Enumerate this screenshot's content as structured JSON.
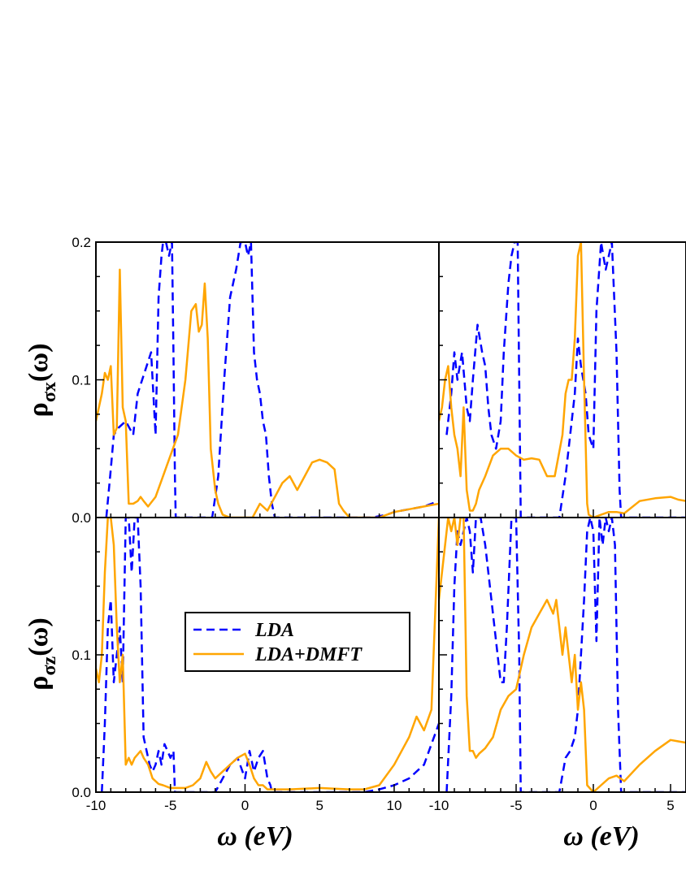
{
  "colors": {
    "lda": "#0000ff",
    "lda_dmft": "#ffa500",
    "axes": "#000000"
  },
  "axis_labels": {
    "x": "ω (eV)",
    "y_top": "ρσx(ω)",
    "y_bottom": "ρσz(ω)"
  },
  "y_label_parts": {
    "top": {
      "main": "ρ",
      "sub": "σx",
      "tail": "(ω)"
    },
    "bottom": {
      "main": "ρ",
      "sub": "σz",
      "tail": "(ω)"
    }
  },
  "legend": {
    "lda": "LDA",
    "lda_dmft": "LDA+DMFT"
  },
  "chart_data": [
    {
      "type": "line",
      "panel": "top-left",
      "xlim": [
        -10,
        13
      ],
      "ylim": [
        0,
        0.2
      ],
      "x_ticks": [],
      "y_ticks": [
        "0.0",
        "0.1",
        "0.2"
      ],
      "series": [
        {
          "name": "LDA",
          "style": "dashed",
          "x": [
            -9.3,
            -9.0,
            -8.8,
            -8.5,
            -8.0,
            -7.5,
            -7.2,
            -6.9,
            -6.6,
            -6.3,
            -6.0,
            -5.8,
            -5.6,
            -5.5,
            -5.3,
            -5.1,
            -4.9,
            -4.8,
            -4.7,
            -4.65,
            -2.2,
            -1.8,
            -1.4,
            -1.0,
            -0.6,
            -0.3,
            0.0,
            0.2,
            0.4,
            0.6,
            0.8,
            1.0,
            1.2,
            1.4,
            1.6,
            1.8,
            2.0,
            3,
            5,
            7,
            8.5,
            9.5,
            10,
            11,
            12,
            13
          ],
          "y": [
            0.0,
            0.035,
            0.06,
            0.065,
            0.07,
            0.06,
            0.09,
            0.1,
            0.11,
            0.12,
            0.06,
            0.16,
            0.19,
            0.2,
            0.2,
            0.19,
            0.2,
            0.12,
            0.03,
            0.0,
            0.0,
            0.03,
            0.1,
            0.16,
            0.18,
            0.2,
            0.2,
            0.19,
            0.2,
            0.12,
            0.1,
            0.09,
            0.07,
            0.06,
            0.03,
            0.01,
            0.0,
            0.0,
            0.0,
            0.0,
            0.0,
            0.002,
            0.004,
            0.006,
            0.008,
            0.012
          ]
        },
        {
          "name": "LDA+DMFT",
          "style": "solid",
          "x": [
            -10,
            -9.8,
            -9.6,
            -9.4,
            -9.2,
            -9.0,
            -8.8,
            -8.6,
            -8.4,
            -8.2,
            -8.0,
            -7.8,
            -7.5,
            -7.2,
            -7.0,
            -6.8,
            -6.5,
            -6.0,
            -5.5,
            -5.0,
            -4.5,
            -4.0,
            -3.6,
            -3.3,
            -3.1,
            -2.9,
            -2.7,
            -2.5,
            -2.3,
            -2.0,
            -1.8,
            -1.5,
            -1.0,
            0,
            0.5,
            1,
            1.5,
            2,
            2.5,
            3,
            3.5,
            4,
            4.5,
            5,
            5.5,
            6,
            6.3,
            6.6,
            7,
            8,
            9,
            10,
            11,
            12,
            13
          ],
          "y": [
            0.07,
            0.08,
            0.09,
            0.105,
            0.1,
            0.11,
            0.06,
            0.065,
            0.18,
            0.08,
            0.07,
            0.01,
            0.01,
            0.012,
            0.015,
            0.012,
            0.008,
            0.015,
            0.03,
            0.045,
            0.06,
            0.1,
            0.15,
            0.155,
            0.135,
            0.14,
            0.17,
            0.13,
            0.05,
            0.02,
            0.01,
            0.002,
            0.0,
            0.0,
            0.0,
            0.01,
            0.005,
            0.015,
            0.025,
            0.03,
            0.02,
            0.03,
            0.04,
            0.042,
            0.04,
            0.035,
            0.01,
            0.005,
            0.0,
            0.0,
            0.0,
            0.004,
            0.006,
            0.008,
            0.01
          ]
        }
      ]
    },
    {
      "type": "line",
      "panel": "bottom-left",
      "xlim": [
        -10,
        13
      ],
      "ylim": [
        0,
        0.2
      ],
      "x_ticks": [
        "-10",
        "-5",
        "0",
        "5",
        "10"
      ],
      "y_ticks": [
        "0.0",
        "0.1"
      ],
      "series": [
        {
          "name": "LDA",
          "style": "dashed",
          "x": [
            -9.6,
            -9.4,
            -9.2,
            -9.0,
            -8.8,
            -8.6,
            -8.4,
            -8.2,
            -8.0,
            -7.8,
            -7.6,
            -7.4,
            -7.2,
            -7.0,
            -6.8,
            -6.6,
            -6.4,
            -6.2,
            -6.0,
            -5.8,
            -5.6,
            -5.4,
            -5.2,
            -5.0,
            -4.8,
            -4.7,
            -3.5,
            -2.0,
            -1.5,
            -1.0,
            -0.5,
            0.0,
            0.3,
            0.6,
            0.9,
            1.2,
            1.5,
            1.7,
            1.8,
            3,
            5,
            7,
            8,
            9,
            10,
            11,
            12,
            13
          ],
          "y": [
            0.0,
            0.05,
            0.12,
            0.14,
            0.08,
            0.1,
            0.12,
            0.08,
            0.2,
            0.2,
            0.16,
            0.2,
            0.2,
            0.15,
            0.04,
            0.03,
            0.02,
            0.015,
            0.02,
            0.03,
            0.02,
            0.035,
            0.03,
            0.025,
            0.03,
            0.0,
            0.0,
            0.0,
            0.01,
            0.02,
            0.025,
            0.01,
            0.03,
            0.015,
            0.025,
            0.03,
            0.01,
            0.005,
            0.0,
            0.0,
            0.0,
            0.0,
            0.0,
            0.002,
            0.005,
            0.01,
            0.02,
            0.05
          ]
        },
        {
          "name": "LDA+DMFT",
          "style": "solid",
          "x": [
            -10,
            -9.8,
            -9.6,
            -9.4,
            -9.2,
            -9.0,
            -8.8,
            -8.6,
            -8.4,
            -8.2,
            -8.0,
            -7.8,
            -7.6,
            -7.4,
            -7.0,
            -6.8,
            -6.5,
            -6.2,
            -5.8,
            -5.5,
            -5.0,
            -4.5,
            -4.0,
            -3.5,
            -3.0,
            -2.6,
            -2.3,
            -2.0,
            -1.5,
            -1.0,
            -0.5,
            0.0,
            0.3,
            0.6,
            0.9,
            1.2,
            1.5,
            2,
            3,
            5,
            7,
            8,
            9,
            10,
            11,
            11.5,
            12,
            12.5,
            13
          ],
          "y": [
            0.09,
            0.08,
            0.1,
            0.16,
            0.2,
            0.2,
            0.18,
            0.12,
            0.08,
            0.1,
            0.02,
            0.025,
            0.02,
            0.025,
            0.03,
            0.025,
            0.02,
            0.01,
            0.006,
            0.005,
            0.003,
            0.003,
            0.003,
            0.005,
            0.01,
            0.022,
            0.015,
            0.01,
            0.015,
            0.02,
            0.025,
            0.028,
            0.02,
            0.01,
            0.005,
            0.005,
            0.002,
            0.002,
            0.002,
            0.003,
            0.002,
            0.002,
            0.005,
            0.02,
            0.04,
            0.055,
            0.045,
            0.06,
            0.2
          ]
        }
      ]
    },
    {
      "type": "line",
      "panel": "top-right",
      "xlim": [
        -10,
        6
      ],
      "ylim": [
        0,
        0.2
      ],
      "x_ticks": [],
      "y_ticks": [],
      "series": [
        {
          "name": "LDA",
          "style": "dashed",
          "x": [
            -9.5,
            -9.2,
            -9.0,
            -8.8,
            -8.5,
            -8.2,
            -8.0,
            -7.8,
            -7.5,
            -7.2,
            -7.0,
            -6.8,
            -6.6,
            -6.3,
            -6.0,
            -5.8,
            -5.5,
            -5.3,
            -5.1,
            -4.9,
            -4.8,
            -4.7,
            -2.2,
            -1.8,
            -1.5,
            -1.2,
            -1.0,
            -0.8,
            -0.5,
            -0.3,
            0.0,
            0.2,
            0.5,
            0.8,
            1.0,
            1.2,
            1.5,
            1.7,
            1.8,
            2.5,
            4,
            6
          ],
          "y": [
            0.06,
            0.09,
            0.12,
            0.1,
            0.12,
            0.08,
            0.07,
            0.1,
            0.14,
            0.12,
            0.11,
            0.08,
            0.06,
            0.05,
            0.07,
            0.12,
            0.17,
            0.19,
            0.2,
            0.2,
            0.1,
            0.0,
            0.0,
            0.03,
            0.06,
            0.09,
            0.13,
            0.11,
            0.09,
            0.06,
            0.05,
            0.15,
            0.2,
            0.18,
            0.19,
            0.2,
            0.12,
            0.02,
            0.0,
            0.0,
            0.0,
            0.0
          ]
        },
        {
          "name": "LDA+DMFT",
          "style": "solid",
          "x": [
            -10,
            -9.8,
            -9.6,
            -9.4,
            -9.2,
            -9.0,
            -8.8,
            -8.6,
            -8.4,
            -8.2,
            -8.0,
            -7.8,
            -7.6,
            -7.4,
            -7.0,
            -6.5,
            -6.0,
            -5.5,
            -5.0,
            -4.5,
            -4.0,
            -3.5,
            -3.0,
            -2.5,
            -2.0,
            -1.8,
            -1.6,
            -1.4,
            -1.2,
            -1.0,
            -0.8,
            -0.6,
            -0.4,
            -0.3,
            0.0,
            0.5,
            1.0,
            1.5,
            2.0,
            3,
            4,
            5,
            5.5,
            6
          ],
          "y": [
            0.07,
            0.08,
            0.1,
            0.11,
            0.08,
            0.06,
            0.05,
            0.03,
            0.08,
            0.02,
            0.005,
            0.005,
            0.01,
            0.02,
            0.03,
            0.045,
            0.05,
            0.05,
            0.045,
            0.042,
            0.043,
            0.042,
            0.03,
            0.03,
            0.06,
            0.09,
            0.1,
            0.1,
            0.13,
            0.19,
            0.2,
            0.1,
            0.01,
            0.002,
            0.0,
            0.002,
            0.004,
            0.004,
            0.003,
            0.012,
            0.014,
            0.015,
            0.013,
            0.012
          ]
        }
      ]
    },
    {
      "type": "line",
      "panel": "bottom-right",
      "xlim": [
        -10,
        6
      ],
      "ylim": [
        0,
        0.2
      ],
      "x_ticks": [
        "-10",
        "-5",
        "0",
        "5"
      ],
      "y_ticks": [],
      "series": [
        {
          "name": "LDA",
          "style": "dashed",
          "x": [
            -9.5,
            -9.2,
            -9.0,
            -8.8,
            -8.6,
            -8.4,
            -8.2,
            -8.0,
            -7.8,
            -7.6,
            -7.3,
            -7.0,
            -6.8,
            -6.6,
            -6.4,
            -6.2,
            -6.0,
            -5.8,
            -5.6,
            -5.3,
            -5.0,
            -4.8,
            -4.7,
            -2.2,
            -1.8,
            -1.5,
            -1.2,
            -1.0,
            -0.8,
            -0.6,
            -0.4,
            -0.2,
            0.0,
            0.2,
            0.4,
            0.6,
            0.8,
            1.0,
            1.2,
            1.4,
            1.6,
            1.8,
            2.5,
            6
          ],
          "y": [
            0.0,
            0.07,
            0.15,
            0.19,
            0.18,
            0.19,
            0.2,
            0.19,
            0.16,
            0.2,
            0.2,
            0.18,
            0.16,
            0.14,
            0.12,
            0.1,
            0.08,
            0.08,
            0.12,
            0.2,
            0.2,
            0.1,
            0.0,
            0.0,
            0.025,
            0.03,
            0.04,
            0.06,
            0.1,
            0.14,
            0.19,
            0.2,
            0.19,
            0.11,
            0.2,
            0.18,
            0.2,
            0.19,
            0.2,
            0.18,
            0.06,
            0.0,
            0.0,
            0.0
          ]
        },
        {
          "name": "LDA+DMFT",
          "style": "solid",
          "x": [
            -10,
            -9.8,
            -9.6,
            -9.4,
            -9.2,
            -9.0,
            -8.8,
            -8.6,
            -8.4,
            -8.2,
            -8.0,
            -7.8,
            -7.6,
            -7.4,
            -7.0,
            -6.5,
            -6.0,
            -5.5,
            -5.0,
            -4.5,
            -4.0,
            -3.5,
            -3.0,
            -2.6,
            -2.4,
            -2.2,
            -2.0,
            -1.8,
            -1.6,
            -1.4,
            -1.2,
            -1.0,
            -0.8,
            -0.6,
            -0.4,
            0.0,
            0.5,
            1.0,
            1.5,
            2.0,
            3,
            4,
            5,
            5.5,
            6
          ],
          "y": [
            0.14,
            0.16,
            0.18,
            0.2,
            0.19,
            0.2,
            0.18,
            0.2,
            0.2,
            0.07,
            0.03,
            0.03,
            0.025,
            0.028,
            0.032,
            0.04,
            0.06,
            0.07,
            0.075,
            0.1,
            0.12,
            0.13,
            0.14,
            0.13,
            0.14,
            0.12,
            0.1,
            0.12,
            0.1,
            0.08,
            0.1,
            0.06,
            0.08,
            0.06,
            0.005,
            0.0,
            0.005,
            0.01,
            0.012,
            0.008,
            0.02,
            0.03,
            0.038,
            0.037,
            0.036
          ]
        }
      ]
    }
  ]
}
